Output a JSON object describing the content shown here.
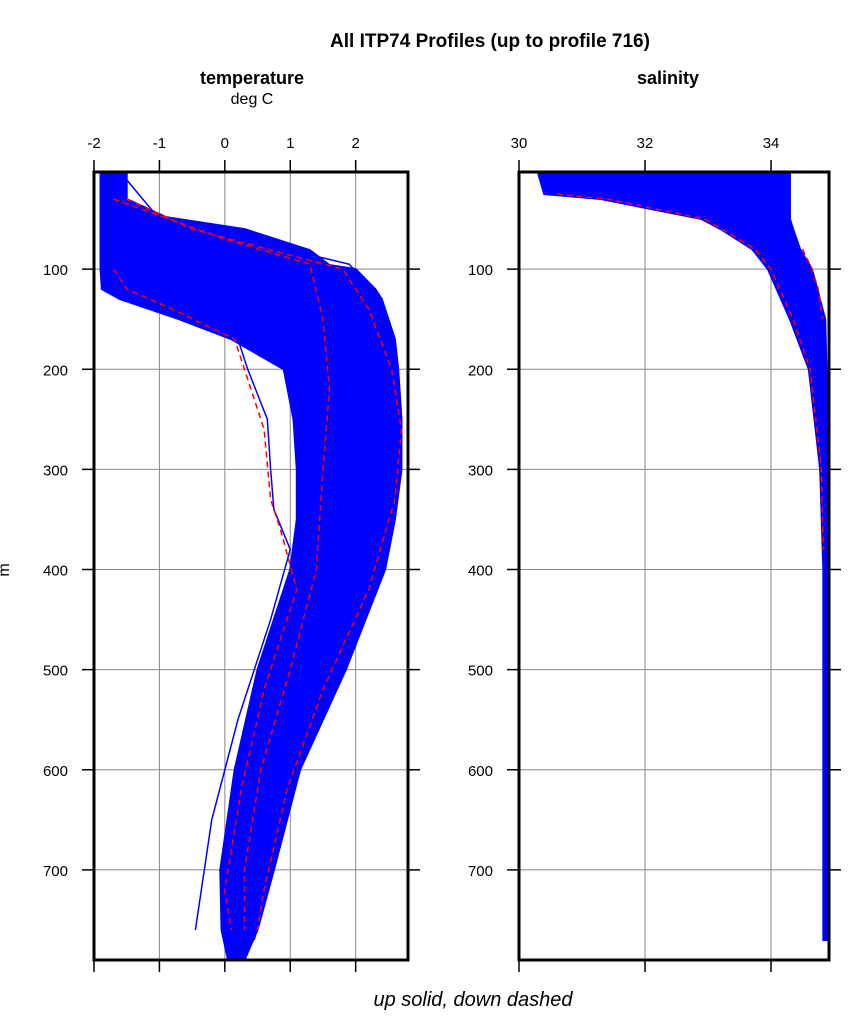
{
  "title": "All ITP74 Profiles (up to profile 716)",
  "footer": "up solid, down dashed",
  "ylabel": "m",
  "colors": {
    "up": "#0000ff",
    "down": "#ff0000",
    "grid": "#888888"
  },
  "chart_data": [
    {
      "type": "line",
      "title": "temperature",
      "subtitle": "deg C",
      "xlim": [
        -2,
        2.8
      ],
      "ylim": [
        790,
        3
      ],
      "y_inverted": true,
      "grid": true,
      "xticks": [
        -2,
        -1,
        0,
        1,
        2
      ],
      "yticks": [
        100,
        200,
        300,
        400,
        500,
        600,
        700
      ],
      "envelope": {
        "depth": [
          3,
          30,
          48,
          60,
          81,
          96,
          100,
          120,
          130,
          150,
          170,
          200,
          250,
          300,
          350,
          400,
          500,
          600,
          700,
          760,
          790
        ],
        "min": [
          -1.9,
          -1.9,
          -1.9,
          -1.9,
          -1.9,
          -1.9,
          -1.9,
          -1.88,
          -1.6,
          -0.7,
          0.1,
          0.9,
          1.05,
          1.1,
          1.1,
          1.0,
          0.5,
          0.15,
          -0.07,
          -0.05,
          0.05
        ],
        "max": [
          -1.5,
          -1.5,
          -0.9,
          0.3,
          1.3,
          1.6,
          2.0,
          2.3,
          2.4,
          2.5,
          2.6,
          2.65,
          2.7,
          2.7,
          2.6,
          2.45,
          1.85,
          1.15,
          0.75,
          0.5,
          0.3
        ]
      },
      "series": [
        {
          "direction": "up",
          "depth": [
            3,
            40,
            90,
            110,
            150,
            200,
            300,
            400,
            500,
            600,
            700,
            760
          ],
          "values": [
            -1.8,
            -1.75,
            1.2,
            1.6,
            1.8,
            1.85,
            1.9,
            1.6,
            1.1,
            0.6,
            0.3,
            0.15
          ]
        },
        {
          "direction": "up",
          "depth": [
            3,
            110,
            140,
            170,
            200,
            250,
            300,
            340,
            380,
            450,
            550,
            650,
            760
          ],
          "values": [
            -1.9,
            -1.85,
            -0.6,
            0.2,
            0.35,
            0.65,
            0.7,
            0.75,
            1.0,
            0.7,
            0.2,
            -0.2,
            -0.45
          ]
        },
        {
          "direction": "up",
          "depth": [
            3,
            50,
            95,
            130,
            180,
            250,
            300,
            400,
            500,
            600,
            700,
            770
          ],
          "values": [
            -1.6,
            -1.0,
            1.9,
            2.4,
            2.6,
            2.65,
            2.6,
            2.3,
            1.7,
            1.1,
            0.7,
            0.45
          ]
        },
        {
          "direction": "down",
          "depth": [
            30,
            60,
            100,
            140,
            200,
            260,
            330,
            420,
            520,
            620,
            720,
            760
          ],
          "values": [
            -1.5,
            -0.5,
            1.8,
            2.2,
            2.55,
            2.7,
            2.6,
            2.2,
            1.5,
            0.95,
            0.6,
            0.5
          ]
        },
        {
          "direction": "down",
          "depth": [
            100,
            120,
            140,
            170,
            200,
            260,
            330,
            360,
            420,
            520,
            620,
            720,
            760
          ],
          "values": [
            -1.7,
            -1.5,
            -0.8,
            0.15,
            0.3,
            0.6,
            0.7,
            0.85,
            1.1,
            0.6,
            0.25,
            0.0,
            0.1
          ]
        },
        {
          "direction": "down",
          "depth": [
            30,
            70,
            95,
            150,
            220,
            300,
            400,
            500,
            600,
            700,
            760
          ],
          "values": [
            -1.7,
            0.0,
            1.3,
            1.5,
            1.6,
            1.5,
            1.4,
            1.0,
            0.55,
            0.3,
            0.3
          ]
        }
      ]
    },
    {
      "type": "line",
      "title": "salinity",
      "xlim": [
        30,
        34.92
      ],
      "ylim": [
        790,
        3
      ],
      "y_inverted": true,
      "grid": true,
      "xticks": [
        30,
        32,
        34
      ],
      "yticks": [
        100,
        200,
        300,
        400,
        500,
        600,
        700
      ],
      "envelope": {
        "depth": [
          3,
          10,
          25,
          30,
          50,
          60,
          80,
          100,
          150,
          200,
          300,
          400,
          700,
          770
        ],
        "min": [
          30.3,
          30.33,
          30.4,
          31.3,
          32.9,
          33.2,
          33.7,
          33.95,
          34.3,
          34.6,
          34.78,
          34.83,
          34.83,
          34.83
        ],
        "max": [
          34.3,
          34.3,
          34.3,
          34.3,
          34.3,
          34.35,
          34.46,
          34.65,
          34.86,
          34.88,
          34.9,
          34.9,
          34.9,
          34.9
        ]
      },
      "series": [
        {
          "direction": "up",
          "depth": [
            3,
            25,
            30,
            50,
            80,
            100,
            150,
            200,
            300,
            400,
            770
          ],
          "values": [
            31.0,
            31.1,
            31.8,
            33.1,
            33.8,
            34.05,
            34.4,
            34.65,
            34.8,
            34.85,
            34.86
          ]
        },
        {
          "direction": "down",
          "depth": [
            25,
            30,
            50,
            80,
            100,
            150,
            200,
            300,
            380
          ],
          "values": [
            30.6,
            31.4,
            32.95,
            33.75,
            34.0,
            34.35,
            34.62,
            34.8,
            34.83
          ]
        },
        {
          "direction": "down",
          "depth": [
            80,
            100,
            120,
            150
          ],
          "values": [
            34.5,
            34.65,
            34.75,
            34.82
          ]
        }
      ]
    }
  ]
}
